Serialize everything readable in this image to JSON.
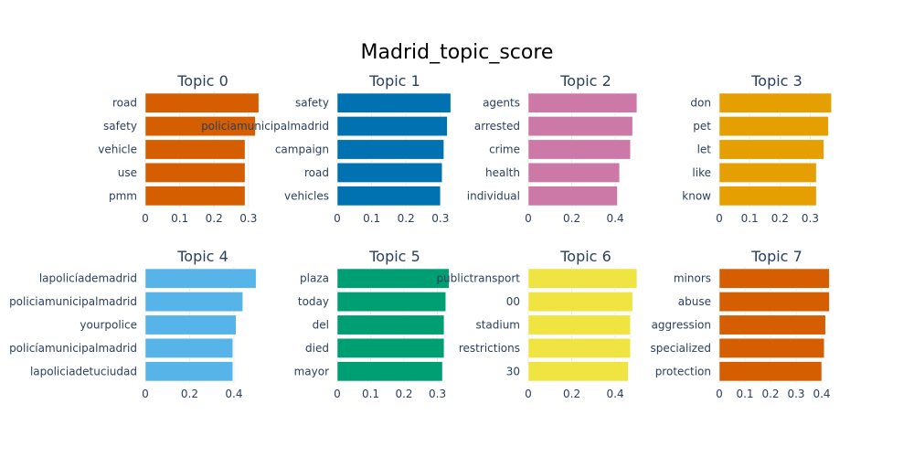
{
  "title": "Madrid_topic_score",
  "chart_data": [
    {
      "type": "bar",
      "orientation": "horizontal",
      "title": "Topic 0",
      "color": "#D55E00",
      "categories": [
        "road",
        "safety",
        "vehicle",
        "use",
        "pmm"
      ],
      "values": [
        0.33,
        0.32,
        0.29,
        0.29,
        0.29
      ],
      "xlim": [
        0,
        0.335
      ],
      "xticks": [
        0,
        0.1,
        0.2,
        0.3
      ],
      "tick_labels": [
        "0",
        "0.1",
        "0.2",
        "0.3"
      ]
    },
    {
      "type": "bar",
      "orientation": "horizontal",
      "title": "Topic 1",
      "color": "#0072B2",
      "categories": [
        "safety",
        "policiamunicipalmadrid",
        "campaign",
        "road",
        "vehicles"
      ],
      "values": [
        0.33,
        0.32,
        0.31,
        0.305,
        0.3
      ],
      "xlim": [
        0,
        0.335
      ],
      "xticks": [
        0,
        0.1,
        0.2,
        0.3
      ],
      "tick_labels": [
        "0",
        "0.1",
        "0.2",
        "0.3"
      ]
    },
    {
      "type": "bar",
      "orientation": "horizontal",
      "title": "Topic 2",
      "color": "#CC79A7",
      "categories": [
        "agents",
        "arrested",
        "crime",
        "health",
        "individual"
      ],
      "values": [
        0.5,
        0.48,
        0.47,
        0.42,
        0.41
      ],
      "xlim": [
        0,
        0.53
      ],
      "xticks": [
        0,
        0.2,
        0.4
      ],
      "tick_labels": [
        "0",
        "0.2",
        "0.4"
      ]
    },
    {
      "type": "bar",
      "orientation": "horizontal",
      "title": "Topic 3",
      "color": "#E69F00",
      "categories": [
        "don",
        "pet",
        "let",
        "like",
        "know"
      ],
      "values": [
        0.37,
        0.36,
        0.345,
        0.32,
        0.32
      ],
      "xlim": [
        0,
        0.38
      ],
      "xticks": [
        0,
        0.1,
        0.2,
        0.3
      ],
      "tick_labels": [
        "0",
        "0.1",
        "0.2",
        "0.3"
      ]
    },
    {
      "type": "bar",
      "orientation": "horizontal",
      "title": "Topic 4",
      "color": "#56B4E9",
      "categories": [
        "lapolicíademadrid",
        "policiamunicipalmadrid",
        "yourpolice",
        "policíamunicipalmadrid",
        "lapoliciadetuciudad"
      ],
      "values": [
        0.5,
        0.44,
        0.41,
        0.395,
        0.395
      ],
      "xlim": [
        0,
        0.52
      ],
      "xticks": [
        0,
        0.2,
        0.4
      ],
      "tick_labels": [
        "0",
        "0.2",
        "0.4"
      ]
    },
    {
      "type": "bar",
      "orientation": "horizontal",
      "title": "Topic 5",
      "color": "#009E73",
      "categories": [
        "plaza",
        "today",
        "del",
        "died",
        "mayor"
      ],
      "values": [
        0.335,
        0.325,
        0.32,
        0.32,
        0.315
      ],
      "xlim": [
        0,
        0.345
      ],
      "xticks": [
        0,
        0.1,
        0.2,
        0.3
      ],
      "tick_labels": [
        "0",
        "0.1",
        "0.2",
        "0.3"
      ]
    },
    {
      "type": "bar",
      "orientation": "horizontal",
      "title": "Topic 6",
      "color": "#F0E442",
      "categories": [
        "publictransport",
        "00",
        "stadium",
        "restrictions",
        "30"
      ],
      "values": [
        0.5,
        0.48,
        0.47,
        0.47,
        0.46
      ],
      "xlim": [
        0,
        0.53
      ],
      "xticks": [
        0,
        0.2,
        0.4
      ],
      "tick_labels": [
        "0",
        "0.2",
        "0.4"
      ]
    },
    {
      "type": "bar",
      "orientation": "horizontal",
      "title": "Topic 7",
      "color": "#D55E00",
      "categories": [
        "minors",
        "abuse",
        "aggression",
        "specialized",
        "protection"
      ],
      "values": [
        0.43,
        0.43,
        0.415,
        0.41,
        0.4
      ],
      "xlim": [
        0,
        0.45
      ],
      "xticks": [
        0,
        0.1,
        0.2,
        0.3,
        0.4
      ],
      "tick_labels": [
        "0",
        "0.1",
        "0.2",
        "0.3",
        "0.4"
      ]
    }
  ]
}
